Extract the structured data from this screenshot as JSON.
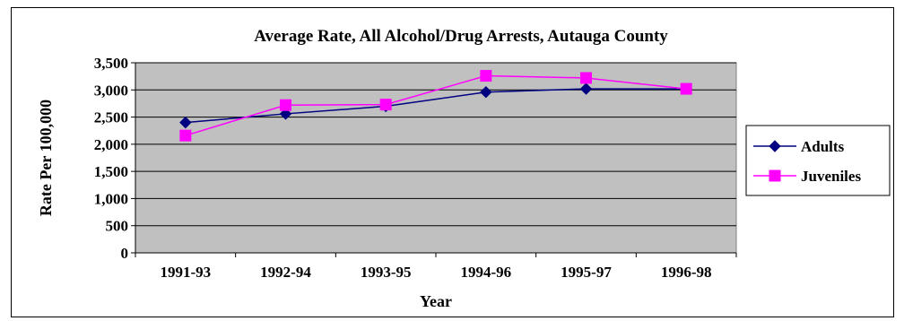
{
  "chart_data": {
    "type": "line",
    "title": "Average Rate, All Alcohol/Drug Arrests, Autauga County",
    "xlabel": "Year",
    "ylabel": "Rate Per 100,000",
    "categories": [
      "1991-93",
      "1992-94",
      "1993-95",
      "1994-96",
      "1995-97",
      "1996-98"
    ],
    "ylim": [
      0,
      3500
    ],
    "yticks": [
      0,
      500,
      1000,
      1500,
      2000,
      2500,
      3000,
      3500
    ],
    "ytick_labels": [
      "0",
      "500",
      "1,000",
      "1,500",
      "2,000",
      "2,500",
      "3,000",
      "3,500"
    ],
    "grid": true,
    "plot_background": "#c0c0c0",
    "legend_position": "right",
    "series": [
      {
        "name": "Adults",
        "values": [
          2400,
          2560,
          2700,
          2960,
          3020,
          3020
        ],
        "color": "#000080",
        "marker": "diamond"
      },
      {
        "name": "Juveniles",
        "values": [
          2160,
          2720,
          2730,
          3260,
          3220,
          3020
        ],
        "color": "#ff00ff",
        "marker": "square"
      }
    ]
  }
}
